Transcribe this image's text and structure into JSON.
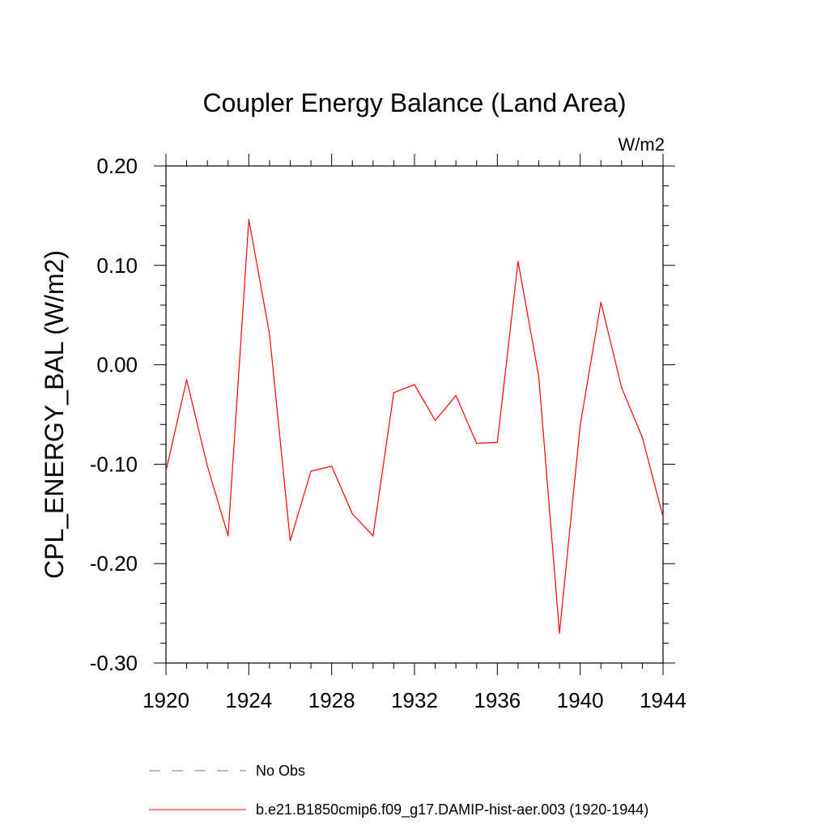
{
  "chart_data": {
    "type": "line",
    "title": "Coupler Energy Balance (Land Area)",
    "units_label": "W/m2",
    "ylabel": "CPL_ENERGY_BAL  (W/m2)",
    "xlabel": "",
    "xlim": [
      1920,
      1944
    ],
    "ylim": [
      -0.3,
      0.2
    ],
    "x_ticks": [
      "1920",
      "1924",
      "1928",
      "1932",
      "1936",
      "1940",
      "1944"
    ],
    "y_ticks": [
      "-0.30",
      "-0.20",
      "-0.10",
      "0.00",
      "0.10",
      "0.20"
    ],
    "grid": false,
    "legend_position": "bottom",
    "series": [
      {
        "name": "b.e21.B1850cmip6.f09_g17.DAMIP-hist-aer.003 (1920-1944)",
        "color": "#ff0000",
        "style": "solid",
        "x": [
          1920,
          1921,
          1922,
          1923,
          1924,
          1925,
          1926,
          1927,
          1928,
          1929,
          1930,
          1931,
          1932,
          1933,
          1934,
          1935,
          1936,
          1937,
          1938,
          1939,
          1940,
          1941,
          1942,
          1943,
          1944
        ],
        "values": [
          -0.107,
          -0.015,
          -0.102,
          -0.172,
          0.146,
          0.031,
          -0.177,
          -0.107,
          -0.102,
          -0.15,
          -0.172,
          -0.028,
          -0.02,
          -0.056,
          -0.031,
          -0.079,
          -0.078,
          0.104,
          -0.012,
          -0.27,
          -0.061,
          0.063,
          -0.023,
          -0.073,
          -0.153
        ]
      }
    ],
    "legend": [
      {
        "label": "No Obs",
        "color": "#7070c0",
        "style": "dashed"
      },
      {
        "label": "b.e21.B1850cmip6.f09_g17.DAMIP-hist-aer.003 (1920-1944)",
        "color": "#ff0000",
        "style": "solid"
      }
    ]
  }
}
